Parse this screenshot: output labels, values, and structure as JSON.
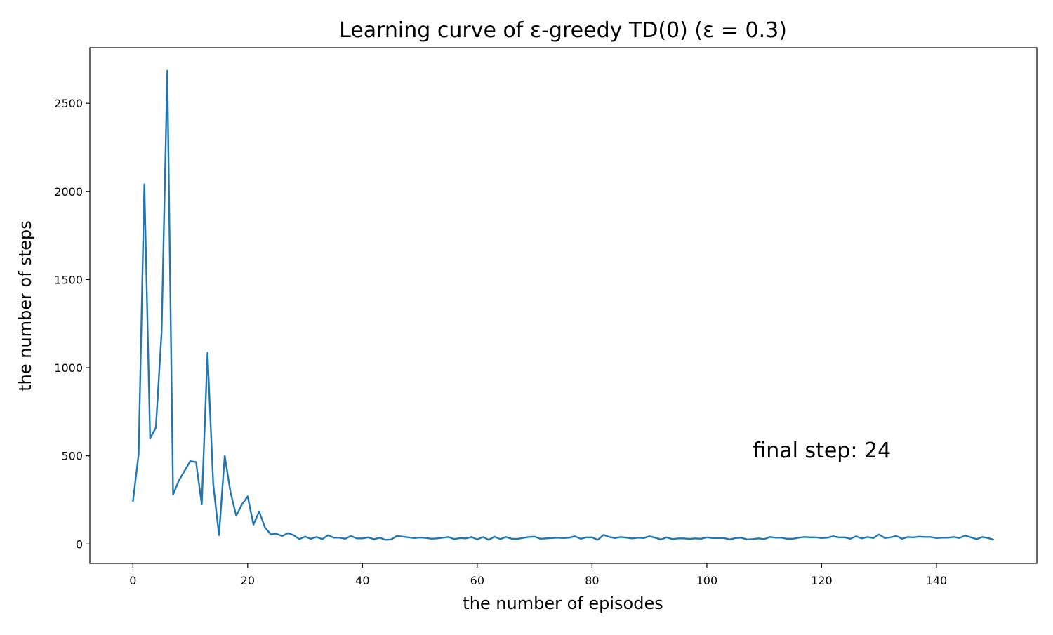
{
  "chart_data": {
    "type": "line",
    "title": "Learning curve of ε-greedy TD(0) (ε = 0.3)",
    "xlabel": "the number of episodes",
    "ylabel": "the number of steps",
    "xlim": [
      -7.5,
      157.5
    ],
    "ylim": [
      -110,
      2815
    ],
    "xticks": [
      0,
      20,
      40,
      60,
      80,
      100,
      120,
      140
    ],
    "yticks": [
      0,
      500,
      1000,
      1500,
      2000,
      2500
    ],
    "grid": false,
    "line_color": "#1f77b4",
    "annotation": {
      "text": "final step: 24",
      "x": 108,
      "y": 530
    },
    "series": [
      {
        "values": [
          240,
          510,
          2040,
          600,
          660,
          1200,
          2685,
          280,
          360,
          415,
          470,
          465,
          225,
          1085,
          340,
          50,
          500,
          295,
          160,
          225,
          270,
          110,
          185,
          95,
          55,
          58,
          45,
          62,
          50,
          28,
          42,
          30,
          40,
          28,
          50,
          36,
          36,
          30,
          46,
          32,
          32,
          38,
          27,
          36,
          24,
          26,
          46,
          42,
          38,
          34,
          37,
          35,
          30,
          32,
          36,
          40,
          28,
          34,
          32,
          40,
          26,
          40,
          24,
          42,
          28,
          40,
          30,
          29,
          35,
          40,
          42,
          30,
          32,
          34,
          36,
          34,
          36,
          44,
          30,
          38,
          38,
          24,
          52,
          40,
          34,
          40,
          36,
          32,
          36,
          34,
          44,
          36,
          26,
          38,
          28,
          32,
          32,
          29,
          32,
          30,
          38,
          34,
          34,
          34,
          26,
          34,
          36,
          26,
          28,
          32,
          28,
          40,
          36,
          36,
          30,
          30,
          36,
          40,
          38,
          38,
          34,
          36,
          44,
          38,
          38,
          30,
          44,
          32,
          40,
          34,
          54,
          34,
          38,
          46,
          30,
          40,
          38,
          42,
          40,
          40,
          34,
          36,
          36,
          40,
          34,
          48,
          38,
          28,
          40,
          34,
          24
        ]
      }
    ]
  }
}
